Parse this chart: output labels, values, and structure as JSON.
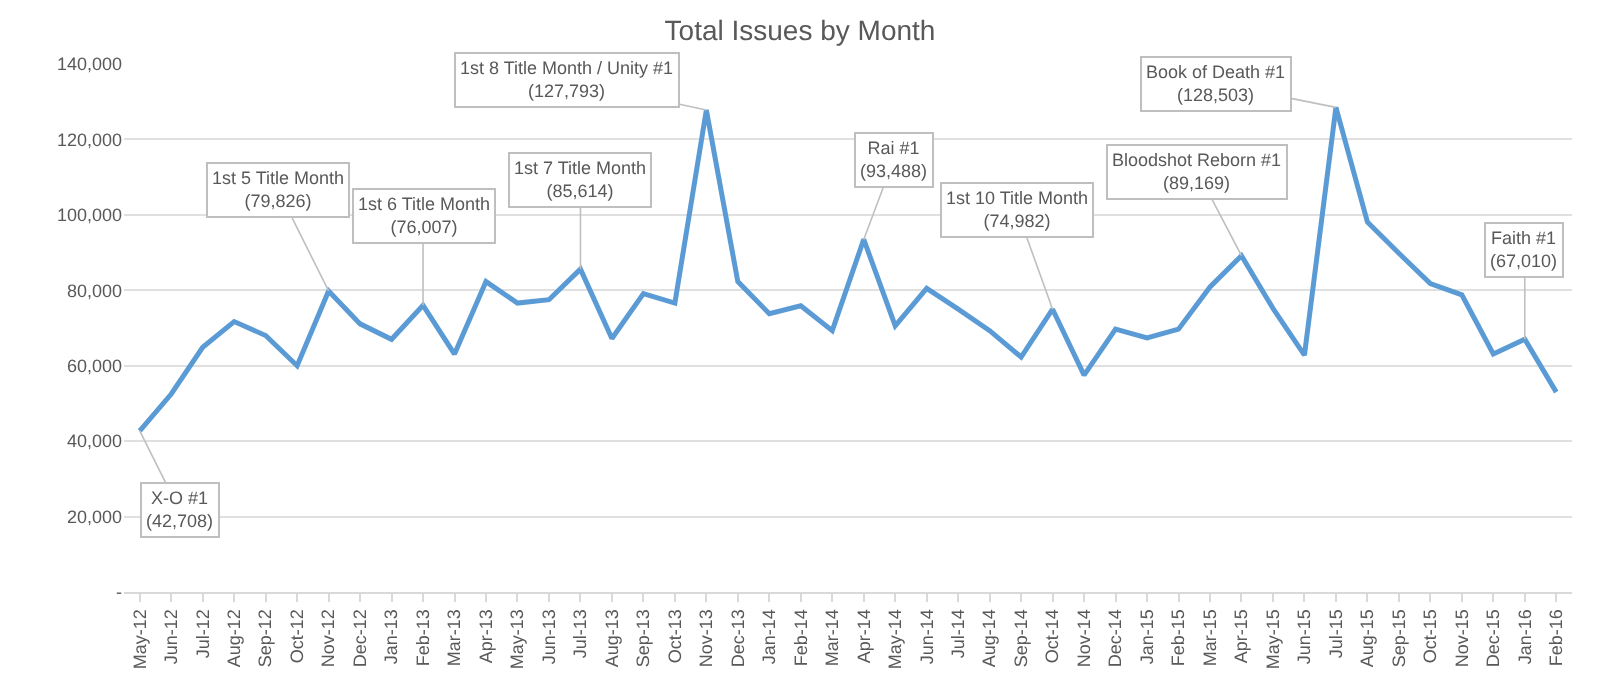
{
  "chart_data": {
    "type": "line",
    "title": "Total Issues by Month",
    "categories": [
      "May-12",
      "Jun-12",
      "Jul-12",
      "Aug-12",
      "Sep-12",
      "Oct-12",
      "Nov-12",
      "Dec-12",
      "Jan-13",
      "Feb-13",
      "Mar-13",
      "Apr-13",
      "May-13",
      "Jun-13",
      "Jul-13",
      "Aug-13",
      "Sep-13",
      "Oct-13",
      "Nov-13",
      "Dec-13",
      "Jan-14",
      "Feb-14",
      "Mar-14",
      "Apr-14",
      "May-14",
      "Jun-14",
      "Jul-14",
      "Aug-14",
      "Sep-14",
      "Oct-14",
      "Nov-14",
      "Dec-14",
      "Jan-15",
      "Feb-15",
      "Mar-15",
      "Apr-15",
      "May-15",
      "Jun-15",
      "Jul-15",
      "Aug-15",
      "Sep-15",
      "Oct-15",
      "Nov-15",
      "Dec-15",
      "Jan-16",
      "Feb-16"
    ],
    "series": [
      {
        "color": "#5b9bd5",
        "values": [
          42708,
          52500,
          64900,
          71700,
          68000,
          60000,
          79826,
          71100,
          67000,
          76007,
          63100,
          82300,
          76600,
          77500,
          85614,
          67200,
          79100,
          76600,
          127793,
          82300,
          73800,
          75900,
          69300,
          93488,
          70600,
          80500,
          75000,
          69300,
          62300,
          74982,
          57500,
          69700,
          67400,
          69700,
          80900,
          89169,
          75200,
          62800,
          128503,
          98100,
          89800,
          81800,
          78800,
          63100,
          67010,
          53000
        ]
      }
    ],
    "ylim": [
      0,
      140000
    ],
    "yticks": [
      {
        "value": 0,
        "label": "-"
      },
      {
        "value": 20000,
        "label": "20,000"
      },
      {
        "value": 40000,
        "label": "40,000"
      },
      {
        "value": 60000,
        "label": "60,000"
      },
      {
        "value": 80000,
        "label": "80,000"
      },
      {
        "value": 100000,
        "label": "100,000"
      },
      {
        "value": 120000,
        "label": "120,000"
      },
      {
        "value": 140000,
        "label": "140,000"
      }
    ],
    "grid": "y",
    "marker": "none",
    "line_style": "solid",
    "annotations": [
      {
        "text": "X-O #1\n(42,708)",
        "x": "May-12",
        "y": 42708
      },
      {
        "text": "1st 5 Title Month\n(79,826)",
        "x": "Nov-12",
        "y": 79826
      },
      {
        "text": "1st 6 Title Month\n(76,007)",
        "x": "Feb-13",
        "y": 76007
      },
      {
        "text": "1st 7 Title Month\n(85,614)",
        "x": "Jul-13",
        "y": 85614
      },
      {
        "text": "1st 8 Title Month / Unity #1\n(127,793)",
        "x": "Nov-13",
        "y": 127793
      },
      {
        "text": "Rai #1\n(93,488)",
        "x": "Apr-14",
        "y": 93488
      },
      {
        "text": "1st 10 Title Month\n(74,982)",
        "x": "Oct-14",
        "y": 74982
      },
      {
        "text": "Bloodshot Reborn #1\n(89,169)",
        "x": "Apr-15",
        "y": 89169
      },
      {
        "text": "Book of Death #1\n(128,503)",
        "x": "Jul-15",
        "y": 128503
      },
      {
        "text": "Faith #1\n(67,010)",
        "x": "Jan-16",
        "y": 67010
      }
    ]
  }
}
